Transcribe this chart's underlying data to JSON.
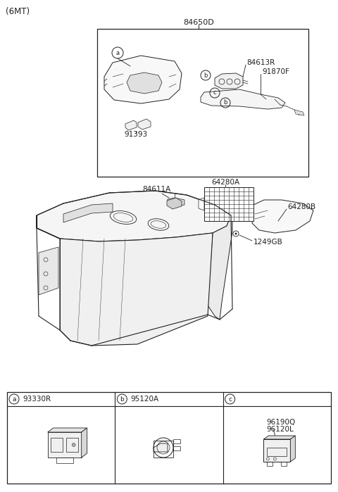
{
  "title": "(6MT)",
  "bg_color": "#ffffff",
  "line_color": "#231f20",
  "text_color": "#231f20",
  "gray_fill": "#f0f0f0",
  "label_84650D": "84650D",
  "label_84613R": "84613R",
  "label_91870F": "91870F",
  "label_91393": "91393",
  "label_84611A": "84611A",
  "label_64280A": "64280A",
  "label_64280B": "64280B",
  "label_1249GB": "1249GB",
  "label_93330R": "93330R",
  "label_95120A": "95120A",
  "label_96190Q": "96190Q",
  "label_96120L": "96120L",
  "fig_w": 4.8,
  "fig_h": 6.99,
  "dpi": 100
}
